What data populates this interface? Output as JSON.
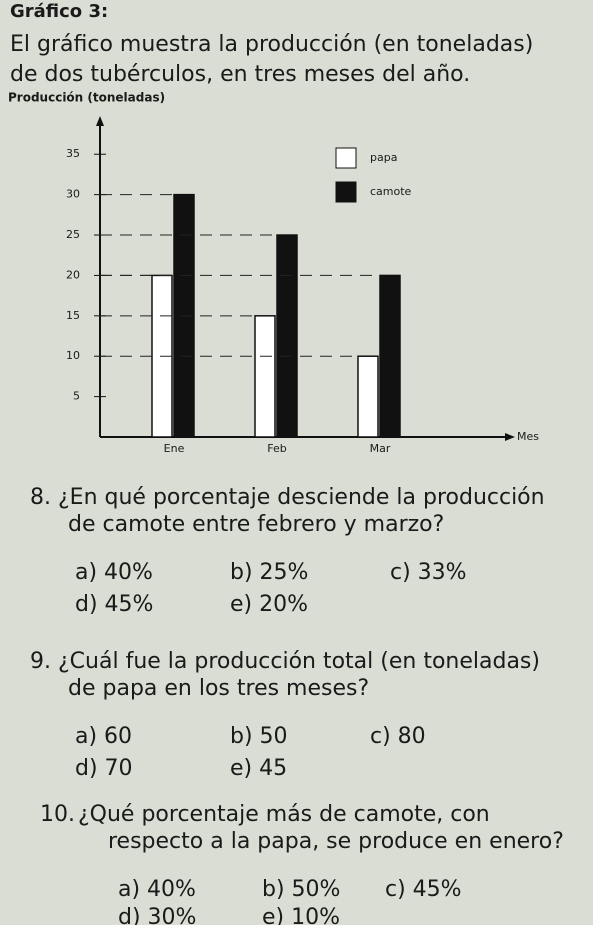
{
  "header": {
    "title": "Gráfico 3:",
    "lines": [
      "El gráfico muestra la producción (en toneladas)",
      "de dos tubérculos, en tres meses del año."
    ]
  },
  "chart_data": {
    "type": "bar",
    "y_label": "Producción (toneladas)",
    "x_label": "Mes",
    "categories": [
      "Ene",
      "Feb",
      "Mar"
    ],
    "series": [
      {
        "name": "papa",
        "color": "#ffffff",
        "values": [
          20,
          15,
          10
        ]
      },
      {
        "name": "camote",
        "color": "#111111",
        "values": [
          30,
          25,
          20
        ]
      }
    ],
    "ylim": [
      0,
      38
    ],
    "yticks": [
      5,
      10,
      15,
      20,
      25,
      30,
      35
    ],
    "legend": "upper right"
  },
  "questions": [
    {
      "number": "8.",
      "text": [
        "¿En qué porcentaje desciende la producción",
        "de camote entre febrero y marzo?"
      ],
      "options": [
        [
          "a) 40%",
          "b) 25%",
          "c) 33%"
        ],
        [
          "d) 45%",
          "e) 20%"
        ]
      ]
    },
    {
      "number": "9.",
      "text": [
        "¿Cuál fue la producción total (en toneladas)",
        "de papa en los tres meses?"
      ],
      "options": [
        [
          "a) 60",
          "b) 50",
          "c) 80"
        ],
        [
          "d) 70",
          "e) 45"
        ]
      ]
    },
    {
      "number": "10.",
      "text": [
        "¿Qué porcentaje más de camote, con",
        "respecto a la papa, se produce en enero?"
      ],
      "options": [
        [
          "a) 40%",
          "b) 50%",
          "c) 45%"
        ],
        [
          "d) 30%",
          "e) 10%"
        ]
      ]
    }
  ]
}
